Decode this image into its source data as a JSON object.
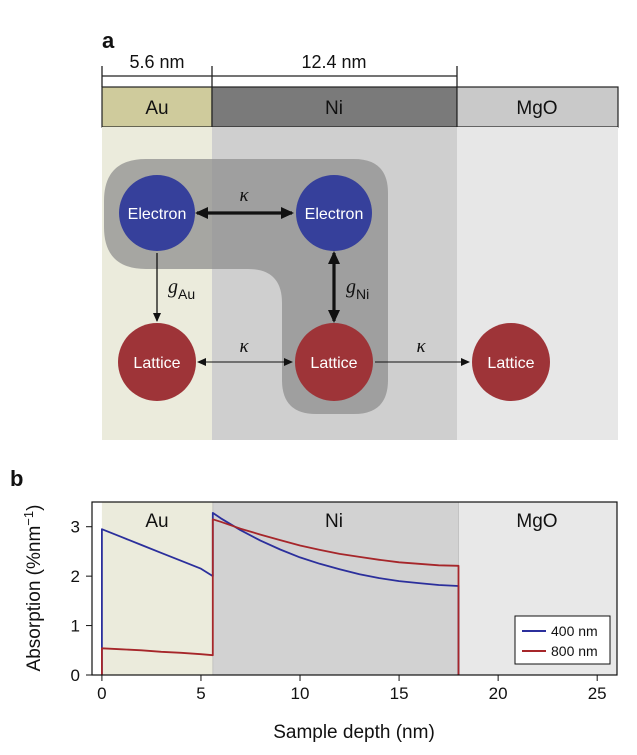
{
  "panel_a": {
    "label": "a",
    "widths": {
      "au": "5.6 nm",
      "ni": "12.4 nm"
    },
    "layers": {
      "au": "Au",
      "ni": "Ni",
      "mgo": "MgO"
    },
    "nodes": {
      "au_electron": "Electron",
      "ni_electron": "Electron",
      "au_lattice": "Lattice",
      "ni_lattice": "Lattice",
      "mgo_lattice": "Lattice"
    },
    "couplings": {
      "kappa_ee": "κ",
      "kappa_au_ni": "κ",
      "kappa_ni_mgo": "κ",
      "g_au_symbol": "g",
      "g_au_sub": "Au",
      "g_ni_symbol": "g",
      "g_ni_sub": "Ni"
    },
    "colors": {
      "au_bar": "#cfcb9c",
      "ni_bar": "#7a7a7a",
      "mgo_bar": "#c9c9c9",
      "au_bg": "#ebebdc",
      "ni_bg": "#cfcfcf",
      "mgo_bg": "#e7e7e7",
      "electron": "#36409b",
      "lattice": "#9e3438",
      "highlight": "#8f8f8f"
    }
  },
  "panel_b": {
    "label": "b",
    "regions": {
      "au": "Au",
      "ni": "Ni",
      "mgo": "MgO"
    }
  },
  "chart_data": {
    "type": "line",
    "title": "",
    "xlabel": "Sample depth (nm)",
    "ylabel": "Absorption (%nm",
    "ylabel_sup": "−1",
    "ylabel_close": ")",
    "xlim": [
      -0.5,
      26
    ],
    "ylim": [
      0,
      3.5
    ],
    "xticks": [
      0,
      5,
      10,
      15,
      20,
      25
    ],
    "yticks": [
      0,
      1,
      2,
      3
    ],
    "regions": [
      {
        "name": "Au",
        "x0": 0,
        "x1": 5.6,
        "color": "#ebebdc"
      },
      {
        "name": "Ni",
        "x0": 5.6,
        "x1": 18,
        "color": "#d2d2d2"
      },
      {
        "name": "MgO",
        "x0": 18,
        "x1": 26,
        "color": "#e8e8e8"
      }
    ],
    "series": [
      {
        "name": "400 nm",
        "color": "#2b2f9c",
        "x": [
          0,
          0,
          1,
          2,
          3,
          4,
          5,
          5.6,
          5.6,
          6,
          7,
          8,
          9,
          10,
          11,
          12,
          13,
          14,
          15,
          16,
          17,
          18,
          18
        ],
        "y": [
          0,
          2.95,
          2.79,
          2.63,
          2.47,
          2.31,
          2.15,
          2.0,
          3.28,
          3.17,
          2.93,
          2.72,
          2.54,
          2.38,
          2.25,
          2.14,
          2.04,
          1.96,
          1.9,
          1.86,
          1.82,
          1.8,
          0
        ]
      },
      {
        "name": "800 nm",
        "color": "#a6262a",
        "x": [
          0,
          0,
          1,
          2,
          3,
          4,
          5,
          5.6,
          5.6,
          6,
          7,
          8,
          9,
          10,
          11,
          12,
          13,
          14,
          15,
          16,
          17,
          18,
          18
        ],
        "y": [
          0,
          0.54,
          0.52,
          0.5,
          0.47,
          0.45,
          0.42,
          0.4,
          3.15,
          3.1,
          2.96,
          2.84,
          2.73,
          2.62,
          2.53,
          2.45,
          2.39,
          2.33,
          2.28,
          2.25,
          2.22,
          2.21,
          0
        ]
      }
    ],
    "legend": {
      "placement": "bottom-right",
      "entries": [
        "400 nm",
        "800 nm"
      ]
    }
  }
}
